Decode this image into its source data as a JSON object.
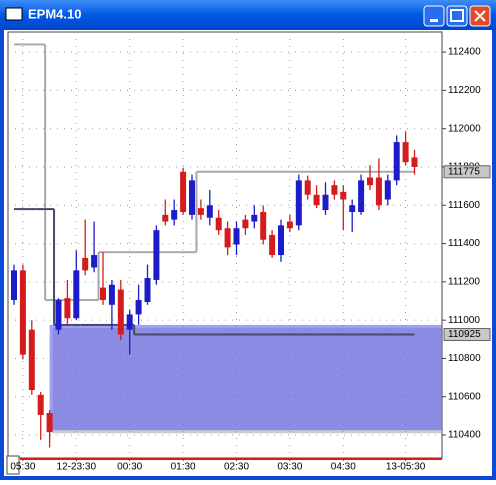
{
  "chart_data": {
    "type": "candlestick",
    "title": "EPM4.10",
    "categories": [
      null,
      "05:30",
      null,
      null,
      null,
      null,
      null,
      "12-23:30",
      null,
      null,
      null,
      null,
      null,
      "00:30",
      null,
      null,
      null,
      null,
      null,
      "01:30",
      null,
      null,
      null,
      null,
      null,
      "02:30",
      null,
      null,
      null,
      null,
      null,
      "03:30",
      null,
      null,
      null,
      null,
      null,
      "04:30",
      null,
      null,
      null,
      null,
      null,
      null,
      "13-05:30",
      null
    ],
    "open": [
      111105,
      111260,
      110950,
      110610,
      110515,
      110950,
      111115,
      111010,
      111325,
      111275,
      111170,
      111080,
      111160,
      110950,
      111030,
      111095,
      111210,
      111550,
      111525,
      111775,
      111550,
      111585,
      111535,
      111535,
      111480,
      111395,
      111525,
      111515,
      111565,
      111445,
      111340,
      111515,
      111495,
      111730,
      111655,
      111575,
      111705,
      111670,
      111565,
      111565,
      111745,
      111745,
      111630,
      111730,
      111930,
      111850
    ],
    "high": [
      111290,
      111290,
      111000,
      110625,
      110530,
      111115,
      111210,
      111365,
      111525,
      111515,
      111355,
      111210,
      111210,
      111055,
      111185,
      111290,
      111495,
      111630,
      111630,
      111795,
      111760,
      111630,
      111680,
      111575,
      111515,
      111515,
      111550,
      111600,
      111600,
      111470,
      111525,
      111550,
      111760,
      111755,
      111705,
      111720,
      111730,
      111705,
      111630,
      111760,
      111810,
      111845,
      111760,
      111965,
      111985,
      111890
    ],
    "low": [
      111080,
      110795,
      110610,
      110375,
      110335,
      110925,
      110975,
      111000,
      111235,
      111250,
      111080,
      110950,
      110895,
      110820,
      110975,
      111080,
      111185,
      111495,
      111495,
      111550,
      111525,
      111525,
      111495,
      111445,
      111340,
      111340,
      111445,
      111480,
      111395,
      111325,
      111305,
      111460,
      111470,
      111630,
      111585,
      111550,
      111630,
      111470,
      111460,
      111550,
      111680,
      111575,
      111600,
      111705,
      111810,
      111760
    ],
    "close": [
      111260,
      110820,
      110635,
      110505,
      110415,
      111105,
      111010,
      111260,
      111260,
      111340,
      111105,
      111185,
      110925,
      111030,
      111105,
      111220,
      111470,
      111515,
      111575,
      111565,
      111730,
      111550,
      111600,
      111470,
      111380,
      111480,
      111480,
      111550,
      111420,
      111340,
      111495,
      111480,
      111730,
      111655,
      111600,
      111655,
      111655,
      111630,
      111600,
      111730,
      111705,
      111600,
      111730,
      111930,
      111825,
      111800
    ],
    "up_color": "#1c1cc8",
    "down_color": "#d41c1c",
    "upper_line": [
      112440,
      112440,
      112440,
      112440,
      111105,
      111105,
      111105,
      111105,
      111105,
      111105,
      111355,
      111355,
      111355,
      111355,
      111355,
      111355,
      111355,
      111355,
      111355,
      111355,
      111355,
      111775,
      111775,
      111775,
      111775,
      111775,
      111775,
      111775,
      111775,
      111775,
      111775,
      111775,
      111775,
      111775,
      111775,
      111775,
      111775,
      111775,
      111775,
      111775,
      111775,
      111775,
      111775,
      111775,
      111775,
      111775
    ],
    "upper_color": "#a8a8a8",
    "lower_line": [
      111580,
      111580,
      111580,
      111580,
      111580,
      110975,
      110975,
      110975,
      110975,
      110975,
      110975,
      110975,
      110975,
      110975,
      110925,
      110925,
      110925,
      110925,
      110925,
      110925,
      110925,
      110925,
      110925,
      110925,
      110925,
      110925,
      110925,
      110925,
      110925,
      110925,
      110925,
      110925,
      110925,
      110925,
      110925,
      110925,
      110925,
      110925,
      110925,
      110925,
      110925,
      110925,
      110925,
      110925,
      110925,
      110925
    ],
    "lower_color": "#484868",
    "zone": [
      110425,
      110975
    ],
    "zone_color": "#6464f4",
    "markers": [
      111775,
      110925
    ],
    "ylim": [
      110280,
      112505
    ],
    "yticks": [
      110400,
      110600,
      110800,
      111000,
      111200,
      111400,
      111600,
      111800,
      112000,
      112200,
      112400
    ],
    "grid": true
  }
}
